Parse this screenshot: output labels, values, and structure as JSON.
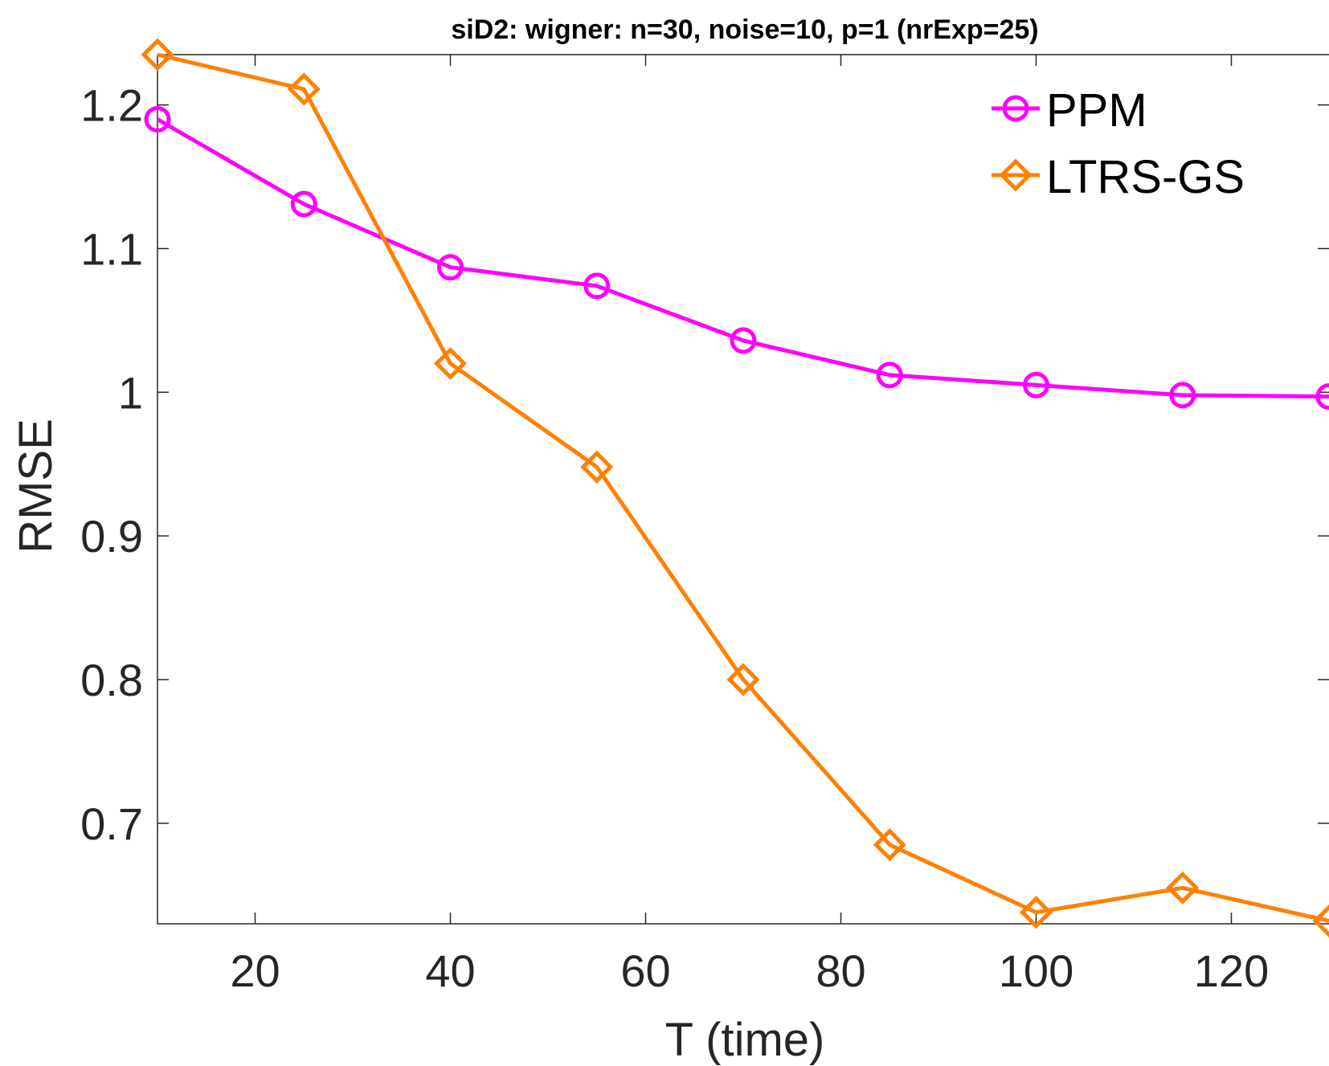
{
  "chart_data": {
    "type": "line",
    "title": "siD2: wigner: n=30, noise=10, p=1 (nrExp=25)",
    "xlabel": "T (time)",
    "ylabel": "RMSE",
    "x": [
      10,
      25,
      40,
      55,
      70,
      85,
      100,
      115,
      130
    ],
    "xlim": [
      10,
      130
    ],
    "ylim": [
      0.63,
      1.235
    ],
    "xticks": [
      20,
      40,
      60,
      80,
      100,
      120
    ],
    "xtick_labels": [
      "20",
      "40",
      "60",
      "80",
      "100",
      "120"
    ],
    "yticks": [
      0.7,
      0.8,
      0.9,
      1.0,
      1.1,
      1.2
    ],
    "ytick_labels": [
      "0.7",
      "0.8",
      "0.9",
      "1",
      "1.1",
      "1.2"
    ],
    "grid": false,
    "legend_position": "top-right",
    "series": [
      {
        "name": "PPM",
        "color": "#ff00ff",
        "marker": "circle",
        "values": [
          1.19,
          1.131,
          1.087,
          1.074,
          1.036,
          1.012,
          1.005,
          0.998,
          0.997
        ]
      },
      {
        "name": "LTRS-GS",
        "color": "#ff8000",
        "marker": "diamond",
        "values": [
          1.235,
          1.211,
          1.02,
          0.948,
          0.8,
          0.685,
          0.638,
          0.655,
          0.632
        ]
      }
    ]
  }
}
